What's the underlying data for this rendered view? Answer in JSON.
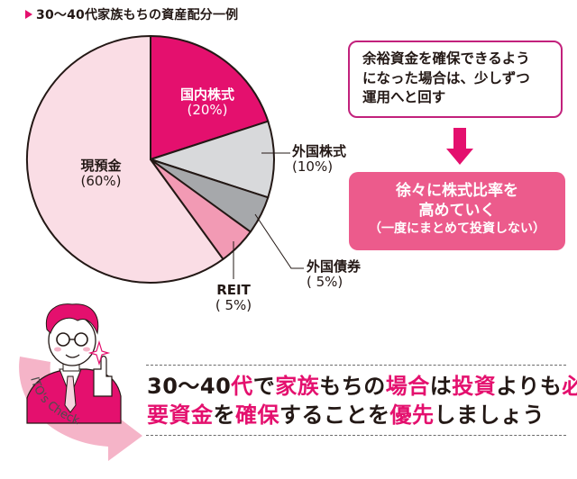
{
  "title": "30～40代家族もちの資産配分一例",
  "colors": {
    "accent": "#e4106e",
    "light_pink": "#fadde5",
    "mid_pink": "#f29ab4",
    "light_grey": "#d8d9db",
    "dark_grey": "#a6a8ab",
    "box_pink": "#ec5b8c",
    "border_magenta": "#c2217c"
  },
  "chart_data": {
    "type": "pie",
    "title": "30～40代家族もちの資産配分一例",
    "categories": [
      "国内株式",
      "外国株式",
      "外国債券",
      "REIT",
      "現預金"
    ],
    "values": [
      20,
      10,
      5,
      5,
      60
    ],
    "unit": "%",
    "colors": [
      "#e4106e",
      "#d8d9db",
      "#a6a8ab",
      "#f29ab4",
      "#fadde5"
    ],
    "start_angle": "12 o'clock, clockwise",
    "labels": [
      {
        "name": "国内株式",
        "pct": "(20%)",
        "position": "inside"
      },
      {
        "name": "外国株式",
        "pct": "(10%)",
        "position": "outside-leader"
      },
      {
        "name": "外国債券",
        "pct": "( 5%)",
        "position": "outside-leader"
      },
      {
        "name": "REIT",
        "pct": "( 5%)",
        "position": "outside-leader"
      },
      {
        "name": "現預金",
        "pct": "(60%)",
        "position": "inside"
      }
    ]
  },
  "pie_labels": {
    "domestic_stock": {
      "name": "国内株式",
      "pct": "(20%)"
    },
    "foreign_stock": {
      "name": "外国株式",
      "pct": "(10%)"
    },
    "foreign_bond": {
      "name": "外国債券",
      "pct": "( 5%)"
    },
    "reit": {
      "name": "REIT",
      "pct": "( 5%)"
    },
    "cash": {
      "name": "現預金",
      "pct": "(60%)"
    }
  },
  "note_box": {
    "lines": [
      "余裕資金を確保できるよう",
      "になった場合は、少しずつ",
      "運用へと回す"
    ]
  },
  "result_box": {
    "line1": "徐々に株式比率を",
    "line2": "高めていく",
    "line3": "（一度にまとめて投資しない）"
  },
  "ito_check": {
    "badge": "ITO's Check",
    "segments_line1": [
      {
        "text": "30～40",
        "hl": false
      },
      {
        "text": "代",
        "hl": true
      },
      {
        "text": "で",
        "hl": false
      },
      {
        "text": "家族",
        "hl": true
      },
      {
        "text": "もちの",
        "hl": false
      },
      {
        "text": "場合",
        "hl": true
      },
      {
        "text": "は",
        "hl": false
      },
      {
        "text": "投資",
        "hl": true
      },
      {
        "text": "よりも",
        "hl": false
      },
      {
        "text": "必",
        "hl": true
      }
    ],
    "segments_line2": [
      {
        "text": "要資金",
        "hl": true
      },
      {
        "text": "を",
        "hl": false
      },
      {
        "text": "確保",
        "hl": true
      },
      {
        "text": "することを",
        "hl": false
      },
      {
        "text": "優先",
        "hl": true
      },
      {
        "text": "しましょう",
        "hl": false
      }
    ]
  }
}
